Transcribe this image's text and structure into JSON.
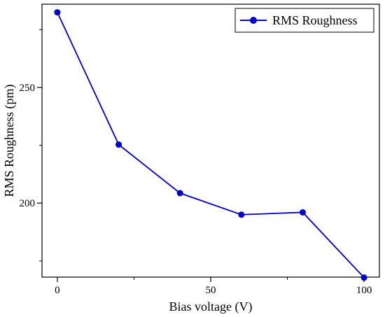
{
  "chart_data": {
    "type": "line",
    "xlabel": "Bias voltage (V)",
    "ylabel": "RMS Roughness (pm)",
    "xlim": [
      -5,
      105
    ],
    "ylim": [
      168,
      286
    ],
    "x_ticks": [
      0,
      50,
      100
    ],
    "x_minor_ticks": [
      25,
      75
    ],
    "y_ticks": [
      200,
      250
    ],
    "y_minor_ticks": [
      175,
      225,
      275
    ],
    "grid": false,
    "legend_position": "top-right",
    "series": [
      {
        "name": "RMS Roughness",
        "color": "#0000cc",
        "marker": "circle",
        "x": [
          0,
          20,
          40,
          60,
          80,
          100
        ],
        "y": [
          282.5,
          225.3,
          204.3,
          195,
          196,
          167.8
        ]
      }
    ]
  }
}
